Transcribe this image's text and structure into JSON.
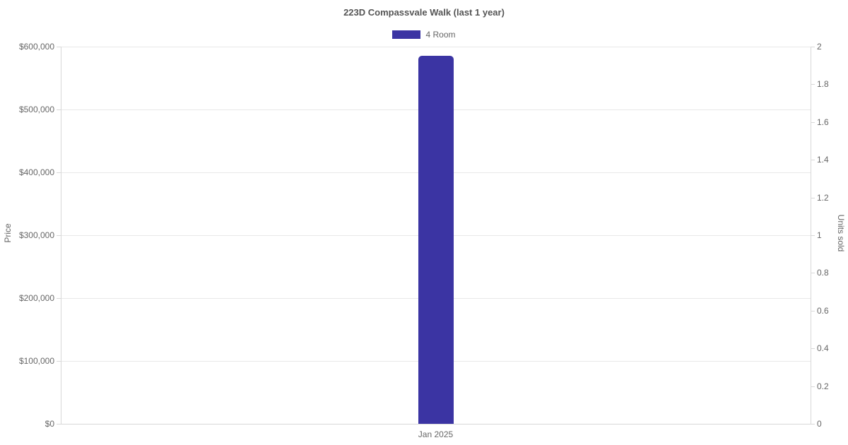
{
  "chart_data": {
    "type": "bar",
    "title": "223D Compassvale Walk (last 1 year)",
    "categories": [
      "Jan 2025"
    ],
    "series": [
      {
        "name": "4 Room",
        "color": "#3b34a3",
        "axis": "left",
        "values": [
          585000
        ]
      }
    ],
    "left_axis": {
      "label": "Price",
      "min": 0,
      "max": 600000,
      "step": 100000,
      "format": "currency",
      "tick_labels": [
        "$0",
        "$100,000",
        "$200,000",
        "$300,000",
        "$400,000",
        "$500,000",
        "$600,000"
      ]
    },
    "right_axis": {
      "label": "Units sold",
      "min": 0,
      "max": 2,
      "step": 0.2,
      "tick_labels": [
        "0",
        "0.2",
        "0.4",
        "0.6",
        "0.8",
        "1",
        "1.2",
        "1.4",
        "1.6",
        "1.8",
        "2"
      ]
    },
    "legend_position": "top",
    "grid": true
  }
}
